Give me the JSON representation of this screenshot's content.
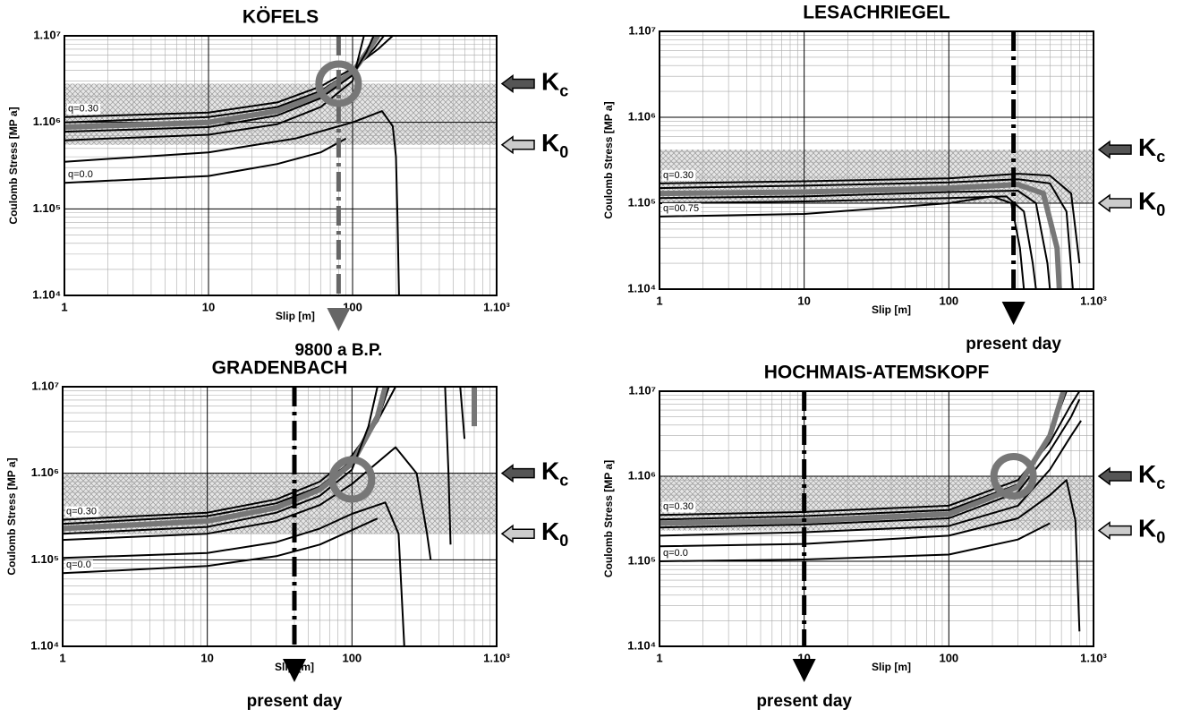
{
  "chart_data": [
    {
      "type": "line",
      "title": "KÖFELS",
      "xlabel": "Slip [m]",
      "ylabel": "Coulomb Stress [MP a]",
      "xscale": "log",
      "yscale": "log",
      "xlim": [
        1,
        1000
      ],
      "ylim": [
        10000,
        10000000
      ],
      "grid": true,
      "minor_grid": true,
      "xticks": [
        1,
        10,
        100,
        {
          "value": 1000,
          "label": "1.10³"
        }
      ],
      "yticks": [
        {
          "value": 10000,
          "label": "1.10⁴"
        },
        {
          "value": 100000,
          "label": "1.10⁵"
        },
        {
          "value": 1000000,
          "label": "1.10⁶"
        },
        {
          "value": 10000000,
          "label": "1.10⁷"
        }
      ],
      "series": [
        {
          "color": "#000",
          "linewidth": 2,
          "label": "q=0.30",
          "x": [
            1,
            10,
            30,
            60,
            100,
            150,
            190
          ],
          "values": [
            1150000,
            1300000,
            1700000,
            2600000,
            4200000,
            7000000,
            10000000
          ]
        },
        {
          "color": "#000",
          "linewidth": 2,
          "x": [
            1,
            10,
            30,
            60,
            100,
            140,
            165
          ],
          "values": [
            1000000,
            1150000,
            1500000,
            2300000,
            4000000,
            7000000,
            10000000
          ]
        },
        {
          "color": "#777",
          "linewidth": 6,
          "x": [
            1,
            10,
            30,
            60,
            100,
            130,
            150
          ],
          "values": [
            880000,
            1000000,
            1350000,
            2100000,
            3800000,
            7000000,
            10000000
          ]
        },
        {
          "color": "#000",
          "linewidth": 2,
          "x": [
            1,
            10,
            30,
            60,
            100,
            125,
            140
          ],
          "values": [
            780000,
            880000,
            1200000,
            1900000,
            3500000,
            6500000,
            10000000
          ]
        },
        {
          "color": "#000",
          "linewidth": 2,
          "x": [
            1,
            10,
            30,
            60,
            100,
            120
          ],
          "values": [
            620000,
            720000,
            950000,
            1500000,
            3000000,
            10000000
          ]
        },
        {
          "color": "#000",
          "linewidth": 2,
          "x": [
            1,
            10,
            40,
            100,
            160,
            190,
            200,
            205,
            210
          ],
          "values": [
            350000,
            450000,
            650000,
            1000000,
            1350000,
            900000,
            400000,
            80000,
            10000
          ]
        },
        {
          "color": "#000",
          "linewidth": 2,
          "label": "q=0.0",
          "x": [
            1,
            10,
            30,
            60,
            90
          ],
          "values": [
            200000,
            240000,
            330000,
            450000,
            650000
          ]
        }
      ],
      "markers": [
        {
          "label": "K",
          "sub": "c",
          "value": 2800000,
          "color": "#555"
        },
        {
          "label": "K",
          "sub": "0",
          "value": 550000,
          "color": "#ccc"
        }
      ],
      "event": {
        "x": 80,
        "label": "9800 a B.P.",
        "color": "#666"
      },
      "circle": {
        "x": 80,
        "y": 2800000
      }
    },
    {
      "type": "line",
      "title": "LESACHRIEGEL",
      "xlabel": "Slip [m]",
      "ylabel": "Coulomb Stress [MP a]",
      "xscale": "log",
      "yscale": "log",
      "xlim": [
        1,
        1000
      ],
      "ylim": [
        10000,
        10000000
      ],
      "grid": true,
      "minor_grid": true,
      "xticks": [
        1,
        10,
        100,
        {
          "value": 1000,
          "label": "1.10³"
        }
      ],
      "yticks": [
        {
          "value": 10000,
          "label": "1.10⁴"
        },
        {
          "value": 100000,
          "label": "1.10⁵"
        },
        {
          "value": 1000000,
          "label": "1.10⁶"
        },
        {
          "value": 10000000,
          "label": "1.10⁷"
        }
      ],
      "series": [
        {
          "color": "#000",
          "linewidth": 2,
          "label": "q=0.30",
          "x": [
            1,
            10,
            100,
            300,
            500,
            700,
            800
          ],
          "values": [
            170000,
            180000,
            195000,
            220000,
            210000,
            130000,
            20000
          ]
        },
        {
          "color": "#000",
          "linewidth": 2,
          "x": [
            1,
            10,
            100,
            300,
            500,
            650,
            720
          ],
          "values": [
            150000,
            160000,
            175000,
            190000,
            170000,
            80000,
            10000
          ]
        },
        {
          "color": "#777",
          "linewidth": 6,
          "x": [
            1,
            10,
            100,
            300,
            450,
            560,
            580
          ],
          "values": [
            130000,
            135000,
            150000,
            165000,
            130000,
            30000,
            10000
          ]
        },
        {
          "color": "#000",
          "linewidth": 2,
          "x": [
            1,
            10,
            100,
            300,
            400,
            480,
            500
          ],
          "values": [
            115000,
            120000,
            135000,
            140000,
            100000,
            20000,
            10000
          ]
        },
        {
          "color": "#000",
          "linewidth": 2,
          "x": [
            1,
            10,
            100,
            250,
            330,
            380,
            400
          ],
          "values": [
            100000,
            105000,
            115000,
            120000,
            80000,
            20000,
            10000
          ]
        },
        {
          "color": "#000",
          "linewidth": 2,
          "label": "q=00.75",
          "x": [
            1,
            10,
            100,
            200,
            270,
            310,
            330
          ],
          "values": [
            70000,
            75000,
            100000,
            120000,
            100000,
            30000,
            10000
          ]
        }
      ],
      "markers": [
        {
          "label": "K",
          "sub": "c",
          "value": 420000,
          "color": "#555"
        },
        {
          "label": "K",
          "sub": "0",
          "value": 100000,
          "color": "#ccc"
        }
      ],
      "event": {
        "x": 280,
        "label": "present day",
        "color": "#000"
      }
    },
    {
      "type": "line",
      "title": "GRADENBACH",
      "xlabel": "Slip [m]",
      "ylabel": "Coulomb Stress [MP a]",
      "xscale": "log",
      "yscale": "log",
      "xlim": [
        1,
        1000
      ],
      "ylim": [
        10000,
        10000000
      ],
      "grid": true,
      "minor_grid": true,
      "xticks": [
        1,
        10,
        100,
        {
          "value": 1000,
          "label": "1.10³"
        }
      ],
      "yticks": [
        {
          "value": 10000,
          "label": "1.10⁴"
        },
        {
          "value": 100000,
          "label": "1.10⁵"
        },
        {
          "value": 1000000,
          "label": "1.10⁶"
        },
        {
          "value": 10000000,
          "label": "1.10⁷"
        }
      ],
      "series": [
        {
          "color": "#000",
          "linewidth": 2,
          "label": "q=0.30",
          "x": [
            1,
            10,
            30,
            60,
            100,
            150,
            200
          ],
          "values": [
            290000,
            350000,
            500000,
            800000,
            1600000,
            4000000,
            10000000
          ]
        },
        {
          "color": "#000",
          "linewidth": 2,
          "x": [
            1,
            10,
            30,
            60,
            100,
            150,
            180
          ],
          "values": [
            260000,
            320000,
            450000,
            700000,
            1400000,
            4000000,
            10000000
          ]
        },
        {
          "color": "#777",
          "linewidth": 6,
          "x": [
            1,
            10,
            30,
            60,
            100,
            150,
            170
          ],
          "values": [
            230000,
            280000,
            400000,
            650000,
            1300000,
            4500000,
            10000000
          ]
        },
        {
          "color": "#000",
          "linewidth": 2,
          "x": [
            1,
            10,
            30,
            60,
            100,
            130,
            150
          ],
          "values": [
            200000,
            240000,
            350000,
            550000,
            1100000,
            3500000,
            10000000
          ]
        },
        {
          "color": "#000",
          "linewidth": 2,
          "x": [
            1,
            10,
            30,
            60,
            100,
            200,
            280,
            330,
            350
          ],
          "values": [
            170000,
            200000,
            280000,
            430000,
            750000,
            2000000,
            1000000,
            200000,
            100000
          ]
        },
        {
          "color": "#000",
          "linewidth": 2,
          "x": [
            1,
            10,
            30,
            60,
            100,
            170,
            210,
            230
          ],
          "values": [
            105000,
            120000,
            160000,
            230000,
            340000,
            460000,
            200000,
            10000
          ]
        },
        {
          "color": "#000",
          "linewidth": 2,
          "label": "q=0.0",
          "x": [
            1,
            10,
            30,
            60,
            100,
            150
          ],
          "values": [
            70000,
            85000,
            110000,
            150000,
            220000,
            300000
          ]
        },
        {
          "color": "#000",
          "linewidth": 2,
          "x": [
            440,
            465,
            480
          ],
          "values": [
            10000000,
            1000000,
            150000
          ]
        },
        {
          "color": "#000",
          "linewidth": 2,
          "x": [
            560,
            600
          ],
          "values": [
            10000000,
            2500000
          ]
        },
        {
          "color": "#777",
          "linewidth": 6,
          "x": [
            700,
            700
          ],
          "values": [
            10000000,
            3500000
          ]
        }
      ],
      "markers": [
        {
          "label": "K",
          "sub": "c",
          "value": 1000000,
          "color": "#555"
        },
        {
          "label": "K",
          "sub": "0",
          "value": 200000,
          "color": "#ccc"
        }
      ],
      "event": {
        "x": 40,
        "label": "present day",
        "color": "#000"
      },
      "circle": {
        "x": 100,
        "y": 850000
      }
    },
    {
      "type": "line",
      "title": "HOCHMAIS-ATEMSKOPF",
      "xlabel": "Slip [m]",
      "ylabel": "Coulomb Stress [MP a]",
      "xscale": "log",
      "yscale": "log",
      "xlim": [
        1,
        1000
      ],
      "ylim": [
        10000,
        10000000
      ],
      "grid": true,
      "minor_grid": true,
      "xticks": [
        1,
        10,
        100,
        {
          "value": 1000,
          "label": "1.10³"
        }
      ],
      "yticks": [
        {
          "value": 10000,
          "label": "1.10⁴"
        },
        {
          "value": 100000,
          "label": "1.10⁵"
        },
        {
          "value": 1000000,
          "label": "1.10⁶"
        },
        {
          "value": 10000000,
          "label": "1.10⁷"
        }
      ],
      "series": [
        {
          "color": "#000",
          "linewidth": 2,
          "label": "q=0.30",
          "x": [
            1,
            10,
            100,
            300,
            500,
            700,
            800
          ],
          "values": [
            350000,
            380000,
            450000,
            900000,
            2500000,
            7000000,
            10000000
          ]
        },
        {
          "color": "#000",
          "linewidth": 2,
          "x": [
            1,
            10,
            100,
            300,
            500,
            650
          ],
          "values": [
            310000,
            340000,
            400000,
            800000,
            3000000,
            10000000
          ]
        },
        {
          "color": "#777",
          "linewidth": 6,
          "x": [
            1,
            10,
            100,
            300,
            500,
            620
          ],
          "values": [
            280000,
            300000,
            360000,
            750000,
            3000000,
            10000000
          ]
        },
        {
          "color": "#000",
          "linewidth": 2,
          "x": [
            1,
            10,
            100,
            300,
            500,
            700,
            800
          ],
          "values": [
            250000,
            270000,
            320000,
            650000,
            2000000,
            5000000,
            8000000
          ]
        },
        {
          "color": "#000",
          "linewidth": 2,
          "x": [
            1,
            10,
            100,
            300,
            500,
            700,
            820
          ],
          "values": [
            200000,
            220000,
            260000,
            450000,
            1200000,
            3000000,
            4500000
          ]
        },
        {
          "color": "#000",
          "linewidth": 2,
          "x": [
            1,
            10,
            100,
            300,
            500,
            650,
            750,
            800
          ],
          "values": [
            150000,
            160000,
            200000,
            320000,
            600000,
            900000,
            300000,
            15000
          ]
        },
        {
          "color": "#000",
          "linewidth": 2,
          "label": "q=0.0",
          "x": [
            1,
            10,
            100,
            300,
            500
          ],
          "values": [
            100000,
            105000,
            120000,
            180000,
            280000
          ]
        }
      ],
      "markers": [
        {
          "label": "K",
          "sub": "c",
          "value": 1000000,
          "color": "#555"
        },
        {
          "label": "K",
          "sub": "0",
          "value": 230000,
          "color": "#ccc"
        }
      ],
      "event": {
        "x": 10,
        "label": "present day",
        "color": "#000"
      },
      "circle": {
        "x": 280,
        "y": 1000000
      }
    }
  ]
}
